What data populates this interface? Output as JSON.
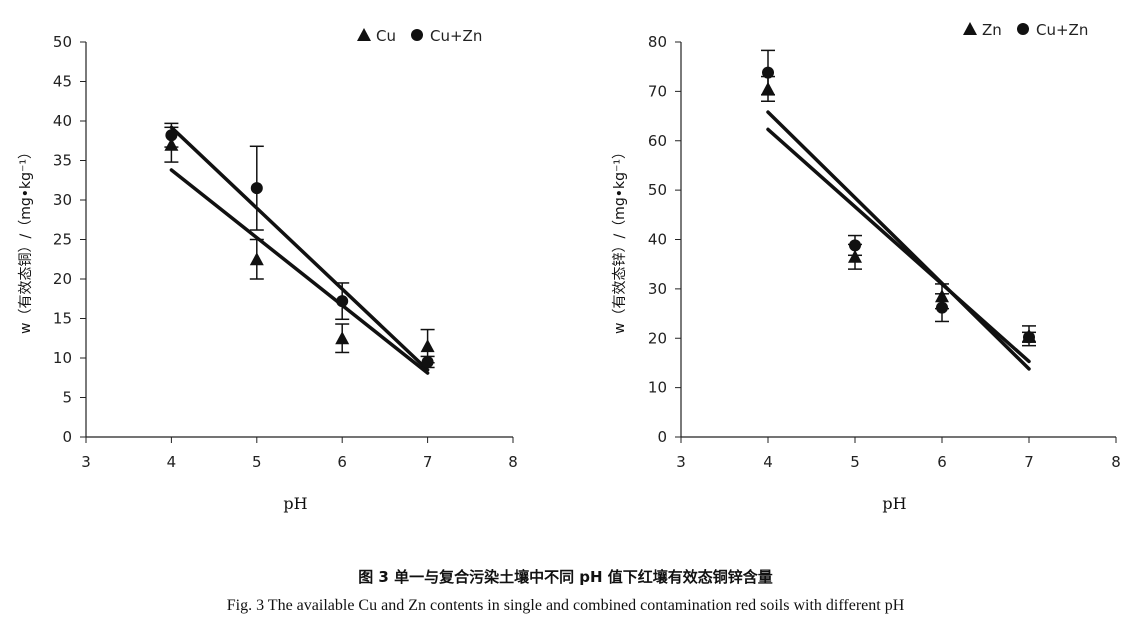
{
  "chart_data": [
    {
      "type": "scatter",
      "xlabel": "pH",
      "ylabel": "w（有效态铜）/（mg•kg⁻¹）",
      "xlim": [
        3,
        8
      ],
      "ylim": [
        0,
        50
      ],
      "xticks": [
        "3",
        "4",
        "5",
        "6",
        "7",
        "8"
      ],
      "yticks": [
        "0",
        "5",
        "10",
        "15",
        "20",
        "25",
        "30",
        "35",
        "40",
        "45",
        "50"
      ],
      "grid": false,
      "legend_position": "top-right",
      "series": [
        {
          "name": "Cu",
          "marker": "triangle",
          "x": [
            4,
            5,
            6,
            7
          ],
          "y": [
            37,
            22.5,
            12.5,
            11.5
          ],
          "err": [
            2.2,
            2.5,
            1.8,
            2.1
          ],
          "fit": {
            "x": [
              4,
              7
            ],
            "y": [
              33.8,
              8.1
            ]
          }
        },
        {
          "name": "Cu+Zn",
          "marker": "circle",
          "x": [
            4,
            5,
            6,
            7
          ],
          "y": [
            38.2,
            31.5,
            17.2,
            9.5
          ],
          "err": [
            1.5,
            5.3,
            2.3,
            0.7
          ],
          "fit": {
            "x": [
              4,
              7
            ],
            "y": [
              39.2,
              8.5
            ]
          }
        }
      ]
    },
    {
      "type": "scatter",
      "xlabel": "pH",
      "ylabel": "w（有效态锌）/（mg•kg⁻¹）",
      "xlim": [
        3,
        8
      ],
      "ylim": [
        0,
        80
      ],
      "xticks": [
        "3",
        "4",
        "5",
        "6",
        "7",
        "8"
      ],
      "yticks": [
        "0",
        "10",
        "20",
        "30",
        "40",
        "50",
        "60",
        "70",
        "80"
      ],
      "grid": false,
      "legend_position": "top-right",
      "series": [
        {
          "name": "Zn",
          "marker": "triangle",
          "x": [
            4,
            5,
            6,
            7
          ],
          "y": [
            70.5,
            36.5,
            28.5,
            20.5
          ],
          "err": [
            2.5,
            2.5,
            2.5,
            2.0
          ],
          "fit": {
            "x": [
              4,
              7
            ],
            "y": [
              62.3,
              15.3
            ]
          }
        },
        {
          "name": "Cu+Zn",
          "marker": "circle",
          "x": [
            4,
            5,
            6,
            7
          ],
          "y": [
            73.8,
            38.8,
            26.2,
            20.2
          ],
          "err": [
            4.5,
            2.0,
            2.8,
            1.0
          ],
          "fit": {
            "x": [
              4,
              7
            ],
            "y": [
              65.8,
              13.8
            ]
          }
        }
      ]
    }
  ],
  "captions": {
    "cn": "图 3    单一与复合污染土壤中不同 pH 值下红壤有效态铜锌含量",
    "en": "Fig. 3    The available Cu and Zn contents in single and combined contamination red soils with different pH"
  }
}
